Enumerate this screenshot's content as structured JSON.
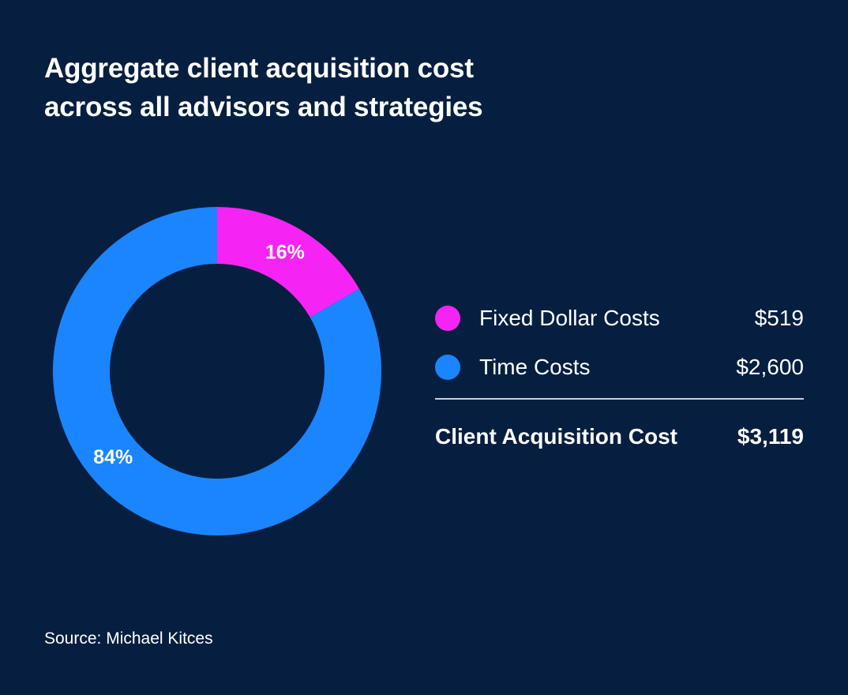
{
  "chart_data": {
    "type": "pie",
    "title_lines": [
      "Aggregate client acquisition cost",
      "across all advisors and strategies"
    ],
    "slices": [
      {
        "name": "Fixed Dollar Costs",
        "value": 519,
        "value_label": "$519",
        "percent_label": "16%",
        "color": "#f524f4"
      },
      {
        "name": "Time Costs",
        "value": 2600,
        "value_label": "$2,600",
        "percent_label": "84%",
        "color": "#1a85ff"
      }
    ],
    "total": {
      "label": "Client Acquisition Cost",
      "value": 3119,
      "value_label": "$3,119"
    },
    "legend_position": "right",
    "donut": true,
    "source": "Source: Michael Kitces"
  },
  "colors": {
    "background": "#061f40",
    "text": "#ffffff",
    "divider": "#c9ced6"
  }
}
